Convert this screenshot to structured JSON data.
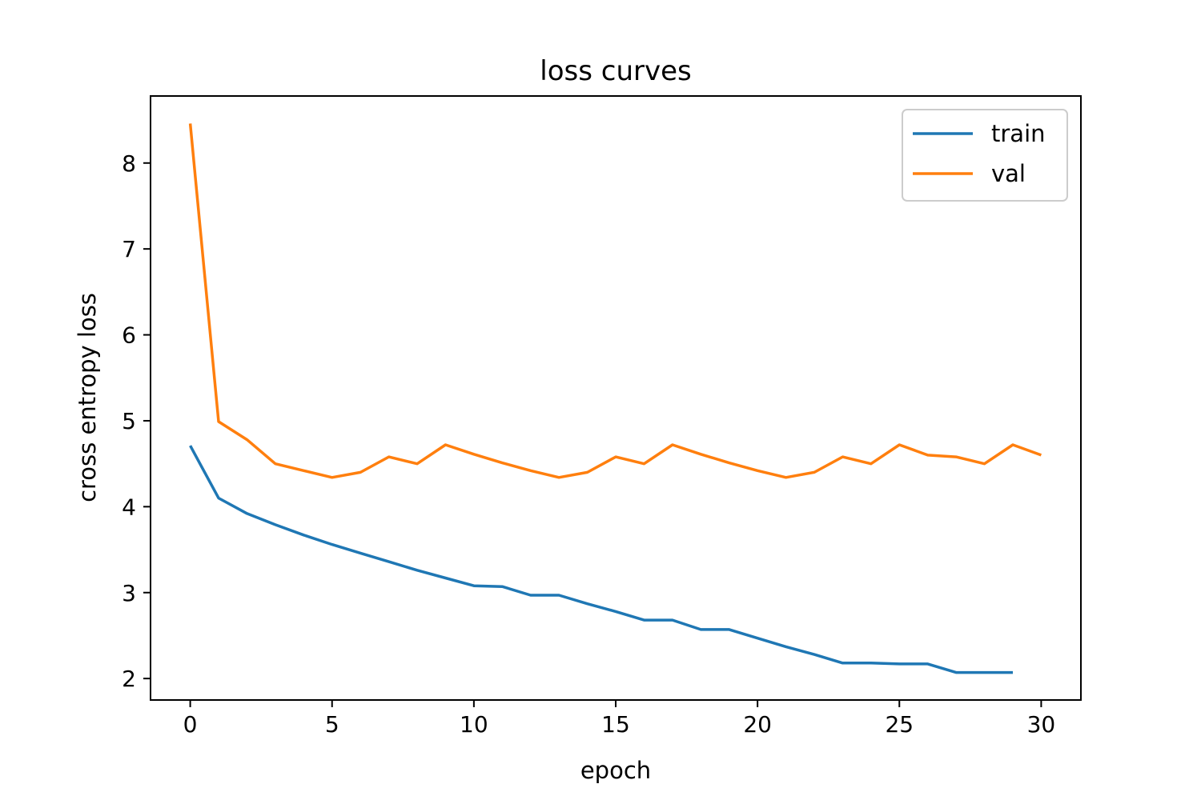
{
  "chart_data": {
    "type": "line",
    "title": "loss curves",
    "xlabel": "epoch",
    "ylabel": "cross entropy loss",
    "xlim": [
      -1.4,
      31.4
    ],
    "ylim": [
      1.75,
      8.78
    ],
    "xticks": [
      0,
      5,
      10,
      15,
      20,
      25,
      30
    ],
    "yticks": [
      2,
      3,
      4,
      5,
      6,
      7,
      8
    ],
    "grid": false,
    "legend_position": "top-right",
    "series": [
      {
        "name": "train",
        "color": "#1f77b4",
        "x": [
          0,
          1,
          2,
          3,
          4,
          5,
          6,
          7,
          8,
          9,
          10,
          11,
          12,
          13,
          14,
          15,
          16,
          17,
          18,
          19,
          20,
          21,
          22,
          23,
          24,
          25,
          26,
          27,
          28,
          29
        ],
        "values": [
          4.71,
          4.1,
          3.92,
          3.79,
          3.67,
          3.56,
          3.46,
          3.36,
          3.26,
          3.17,
          3.08,
          3.07,
          2.97,
          2.97,
          2.87,
          2.78,
          2.68,
          2.68,
          2.57,
          2.57,
          2.47,
          2.37,
          2.28,
          2.18,
          2.18,
          2.17,
          2.17,
          2.07,
          2.07,
          2.07
        ]
      },
      {
        "name": "val",
        "color": "#ff7f0e",
        "x": [
          0,
          1,
          2,
          3,
          4,
          5,
          6,
          7,
          8,
          9,
          10,
          11,
          12,
          13,
          14,
          15,
          16,
          17,
          18,
          19,
          20,
          21,
          22,
          23,
          24,
          25,
          26,
          27,
          28,
          29,
          30
        ],
        "values": [
          8.46,
          4.99,
          4.78,
          4.5,
          4.42,
          4.34,
          4.4,
          4.58,
          4.5,
          4.72,
          4.61,
          4.51,
          4.42,
          4.34,
          4.4,
          4.58,
          4.5,
          4.72,
          4.61,
          4.51,
          4.42,
          4.34,
          4.4,
          4.58,
          4.5,
          4.72,
          4.6,
          4.58,
          4.5,
          4.72,
          4.6
        ]
      }
    ]
  }
}
